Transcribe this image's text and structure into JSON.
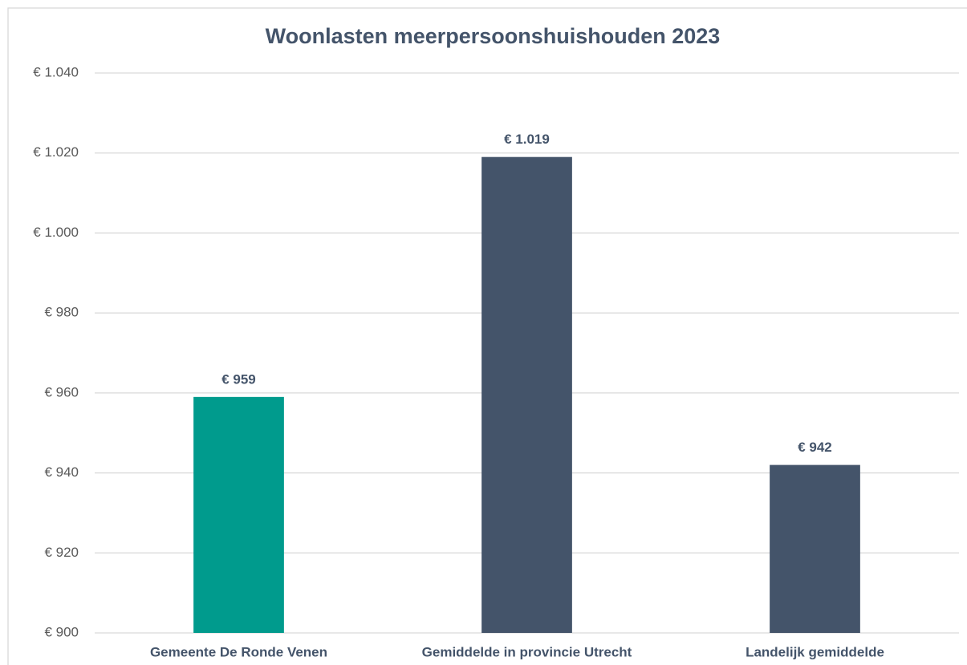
{
  "chart_data": {
    "type": "bar",
    "title": "Woonlasten meerpersoonshuishouden 2023",
    "categories": [
      "Gemeente De Ronde Venen",
      "Gemiddelde in provincie Utrecht",
      "Landelijk gemiddelde"
    ],
    "values": [
      959,
      1019,
      942
    ],
    "value_labels": [
      "€ 959",
      "€ 1.019",
      "€ 942"
    ],
    "colors": [
      "#009b8d",
      "#44546a",
      "#44546a"
    ],
    "ylim": [
      900,
      1040
    ],
    "yticks": [
      {
        "value": 900,
        "label": "€ 900"
      },
      {
        "value": 920,
        "label": "€ 920"
      },
      {
        "value": 940,
        "label": "€ 940"
      },
      {
        "value": 960,
        "label": "€ 960"
      },
      {
        "value": 980,
        "label": "€ 980"
      },
      {
        "value": 1000,
        "label": "€ 1.000"
      },
      {
        "value": 1020,
        "label": "€ 1.020"
      },
      {
        "value": 1040,
        "label": "€ 1.040"
      }
    ],
    "grid": true
  }
}
